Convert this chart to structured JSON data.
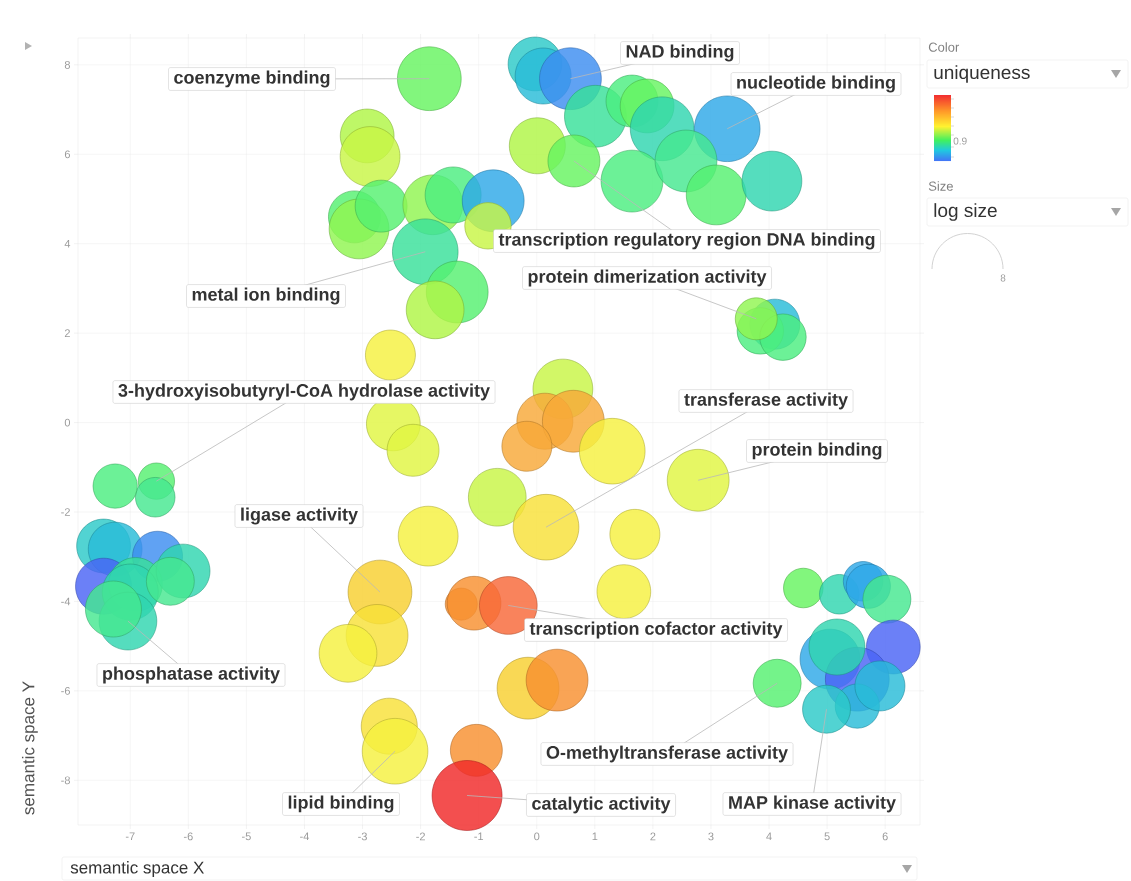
{
  "chart_data": {
    "type": "bubble",
    "xlabel": "semantic space X",
    "ylabel": "semantic space Y",
    "x": [
      -1.85,
      -2.92,
      -2.87,
      -3.14,
      -3.06,
      -2.68,
      -1.79,
      -1.44,
      -0.75,
      -0.84,
      -1.92,
      -1.37,
      -1.75,
      -2.52,
      -0.03,
      0.11,
      0.58,
      1.01,
      1.64,
      1.9,
      2.16,
      3.28,
      0.01,
      0.64,
      1.64,
      2.57,
      3.09,
      4.05,
      4.1,
      3.85,
      4.24,
      3.78,
      0.45,
      0.14,
      0.63,
      -0.17,
      1.3,
      -2.47,
      -2.13,
      2.78,
      -0.68,
      0.16,
      -1.87,
      1.69,
      -2.7,
      -2.75,
      -3.25,
      -1.3,
      -1.08,
      -0.49,
      1.5,
      -0.15,
      0.35,
      -2.54,
      -2.44,
      -1.04,
      -1.2,
      -6.55,
      -6.57,
      -7.26,
      -7.46,
      -7.26,
      -6.53,
      -7.46,
      -6.91,
      -7.0,
      -6.09,
      -6.31,
      -7.04,
      -7.29,
      4.59,
      5.21,
      5.62,
      5.71,
      6.03,
      6.14,
      5.05,
      5.52,
      5.17,
      5.52,
      5.91,
      4.14,
      4.99
    ],
    "values": [
      7.69,
      6.41,
      5.95,
      4.6,
      4.33,
      4.84,
      4.87,
      5.09,
      4.96,
      4.4,
      3.82,
      2.92,
      2.52,
      1.51,
      8.02,
      7.75,
      7.69,
      6.85,
      7.19,
      7.08,
      6.57,
      6.57,
      6.19,
      5.85,
      5.4,
      5.85,
      5.09,
      5.4,
      2.2,
      2.05,
      1.91,
      2.32,
      0.75,
      0.03,
      0.03,
      -0.53,
      -0.64,
      -0.03,
      -0.62,
      -1.29,
      -1.67,
      -2.34,
      -2.54,
      -2.5,
      -3.79,
      -4.76,
      -5.16,
      -4.06,
      -4.04,
      -4.09,
      -3.78,
      -5.94,
      -5.76,
      -6.79,
      -7.35,
      -7.33,
      -8.34,
      -1.31,
      -1.67,
      -1.42,
      -2.76,
      -2.83,
      -2.99,
      -3.66,
      -3.62,
      -3.79,
      -3.32,
      -3.55,
      -4.44,
      -4.17,
      -3.7,
      -3.84,
      -3.55,
      -3.66,
      -3.95,
      -5.02,
      -5.29,
      -5.74,
      -5.02,
      -6.34,
      -5.89,
      -5.83,
      -6.41
    ],
    "sizes": [
      0.83,
      0.59,
      0.73,
      0.55,
      0.73,
      0.55,
      0.73,
      0.64,
      0.78,
      0.44,
      0.88,
      0.78,
      0.68,
      0.51,
      0.59,
      0.64,
      0.78,
      0.78,
      0.55,
      0.59,
      0.83,
      0.88,
      0.64,
      0.55,
      0.78,
      0.78,
      0.73,
      0.73,
      0.51,
      0.44,
      0.44,
      0.36,
      0.73,
      0.64,
      0.78,
      0.51,
      0.88,
      0.59,
      0.55,
      0.78,
      0.68,
      0.88,
      0.73,
      0.51,
      0.83,
      0.78,
      0.68,
      0.21,
      0.59,
      0.68,
      0.59,
      0.78,
      0.78,
      0.64,
      0.88,
      0.55,
      1,
      0.27,
      0.32,
      0.4,
      0.59,
      0.59,
      0.51,
      0.64,
      0.59,
      0.64,
      0.59,
      0.47,
      0.68,
      0.64,
      0.32,
      0.32,
      0.32,
      0.4,
      0.47,
      0.59,
      0.73,
      0.83,
      0.64,
      0.4,
      0.51,
      0.47,
      0.47
    ],
    "colors": [
      "#66f460",
      "#b0f545",
      "#c8f545",
      "#55f070",
      "#90f550",
      "#55f070",
      "#90f550",
      "#4cee80",
      "#2ea8e8",
      "#c8f545",
      "#38e09a",
      "#55f070",
      "#b0f545",
      "#f5f040",
      "#2cc9c8",
      "#28bcd8",
      "#3d8ef0",
      "#38e09a",
      "#4cee80",
      "#66f460",
      "#30d6b0",
      "#2ea8e8",
      "#b0f545",
      "#66f460",
      "#4cee80",
      "#45e890",
      "#55f070",
      "#30d6b0",
      "#28bcd8",
      "#4cee80",
      "#4cee80",
      "#90f550",
      "#c8f545",
      "#f8a838",
      "#f8a838",
      "#f8a838",
      "#f5f040",
      "#e0f542",
      "#e0f542",
      "#e0f542",
      "#c8f545",
      "#f8e038",
      "#f5f040",
      "#f5f040",
      "#f8d030",
      "#f8e038",
      "#f5f040",
      "#f89030",
      "#f89030",
      "#f86838",
      "#f5f040",
      "#f8d030",
      "#f89030",
      "#f8e038",
      "#f5f040",
      "#f89030",
      "#f02828",
      "#55f070",
      "#45e890",
      "#4cee80",
      "#2cc9c8",
      "#28bcd8",
      "#3d8ef0",
      "#4a64f5",
      "#38e09a",
      "#30d6b0",
      "#30d6b0",
      "#45e890",
      "#30d6b0",
      "#45e890",
      "#66f460",
      "#30d6b0",
      "#2ea8e8",
      "#2ea8e8",
      "#45e890",
      "#4a64f5",
      "#2ea8e8",
      "#4a64f5",
      "#30d6b0",
      "#28bcd8",
      "#28bcd8",
      "#55f070",
      "#2cc9c8"
    ],
    "xlim": [
      -7.9,
      6.6
    ],
    "ylim": [
      -9,
      8.6
    ],
    "xticks": [
      -7,
      -6,
      -5,
      -4,
      -3,
      -2,
      -1,
      0,
      1,
      2,
      3,
      4,
      5,
      6
    ],
    "yticks": [
      -8,
      -6,
      -4,
      -2,
      0,
      2,
      4,
      6,
      8
    ],
    "grid": true,
    "annotations": [
      {
        "text": "coenzyme binding",
        "x": -1.85,
        "y": 7.69
      },
      {
        "text": "NAD binding",
        "x": 0.58,
        "y": 7.69
      },
      {
        "text": "nucleotide binding",
        "x": 3.28,
        "y": 6.57
      },
      {
        "text": "transcription regulatory region DNA binding",
        "x": 0.64,
        "y": 5.85
      },
      {
        "text": "protein dimerization activity",
        "x": 3.78,
        "y": 2.32
      },
      {
        "text": "metal ion binding",
        "x": -1.92,
        "y": 3.82
      },
      {
        "text": "3-hydroxyisobutyryl-CoA hydrolase activity",
        "x": -6.55,
        "y": -1.31
      },
      {
        "text": "transferase activity",
        "x": 0.16,
        "y": -2.34
      },
      {
        "text": "protein binding",
        "x": 2.78,
        "y": -1.29
      },
      {
        "text": "ligase activity",
        "x": -2.7,
        "y": -3.79
      },
      {
        "text": "phosphatase activity",
        "x": -7.04,
        "y": -4.44
      },
      {
        "text": "transcription cofactor activity",
        "x": -0.49,
        "y": -4.09
      },
      {
        "text": "O-methyltransferase activity",
        "x": 4.14,
        "y": -5.83
      },
      {
        "text": "lipid binding",
        "x": -2.44,
        "y": -7.35
      },
      {
        "text": "catalytic activity",
        "x": -1.2,
        "y": -8.34
      },
      {
        "text": "MAP kinase activity",
        "x": 4.99,
        "y": -6.41
      },
      "Color",
      "uniqueness",
      "0.9",
      "Size",
      "log size",
      "8"
    ]
  }
}
